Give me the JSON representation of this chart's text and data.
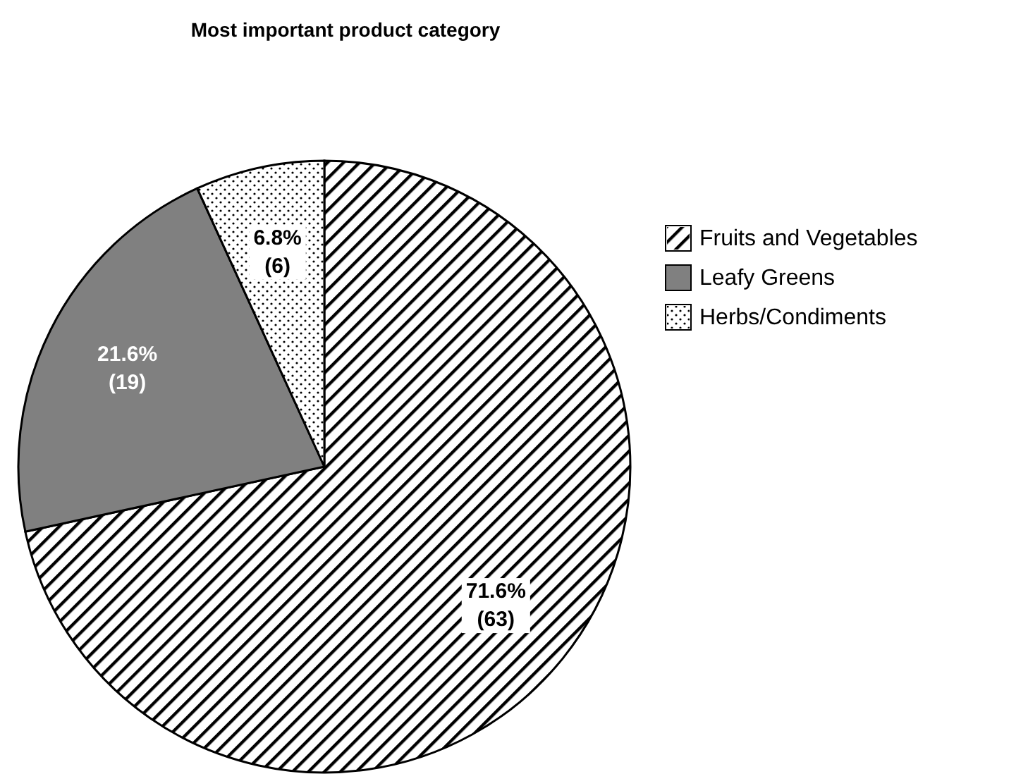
{
  "chart_data": {
    "type": "pie",
    "title": "Most important product category",
    "categories": [
      "Fruits and Vegetables",
      "Leafy Greens",
      "Herbs/Condiments"
    ],
    "values": [
      63,
      19,
      6
    ],
    "colors": [
      "#ffffff",
      "#808080",
      "#ffffff"
    ],
    "value_labels": [
      "71.6%\n(63)",
      "21.6%\n(19)",
      "6.8%\n(6)"
    ],
    "legend": "right"
  }
}
